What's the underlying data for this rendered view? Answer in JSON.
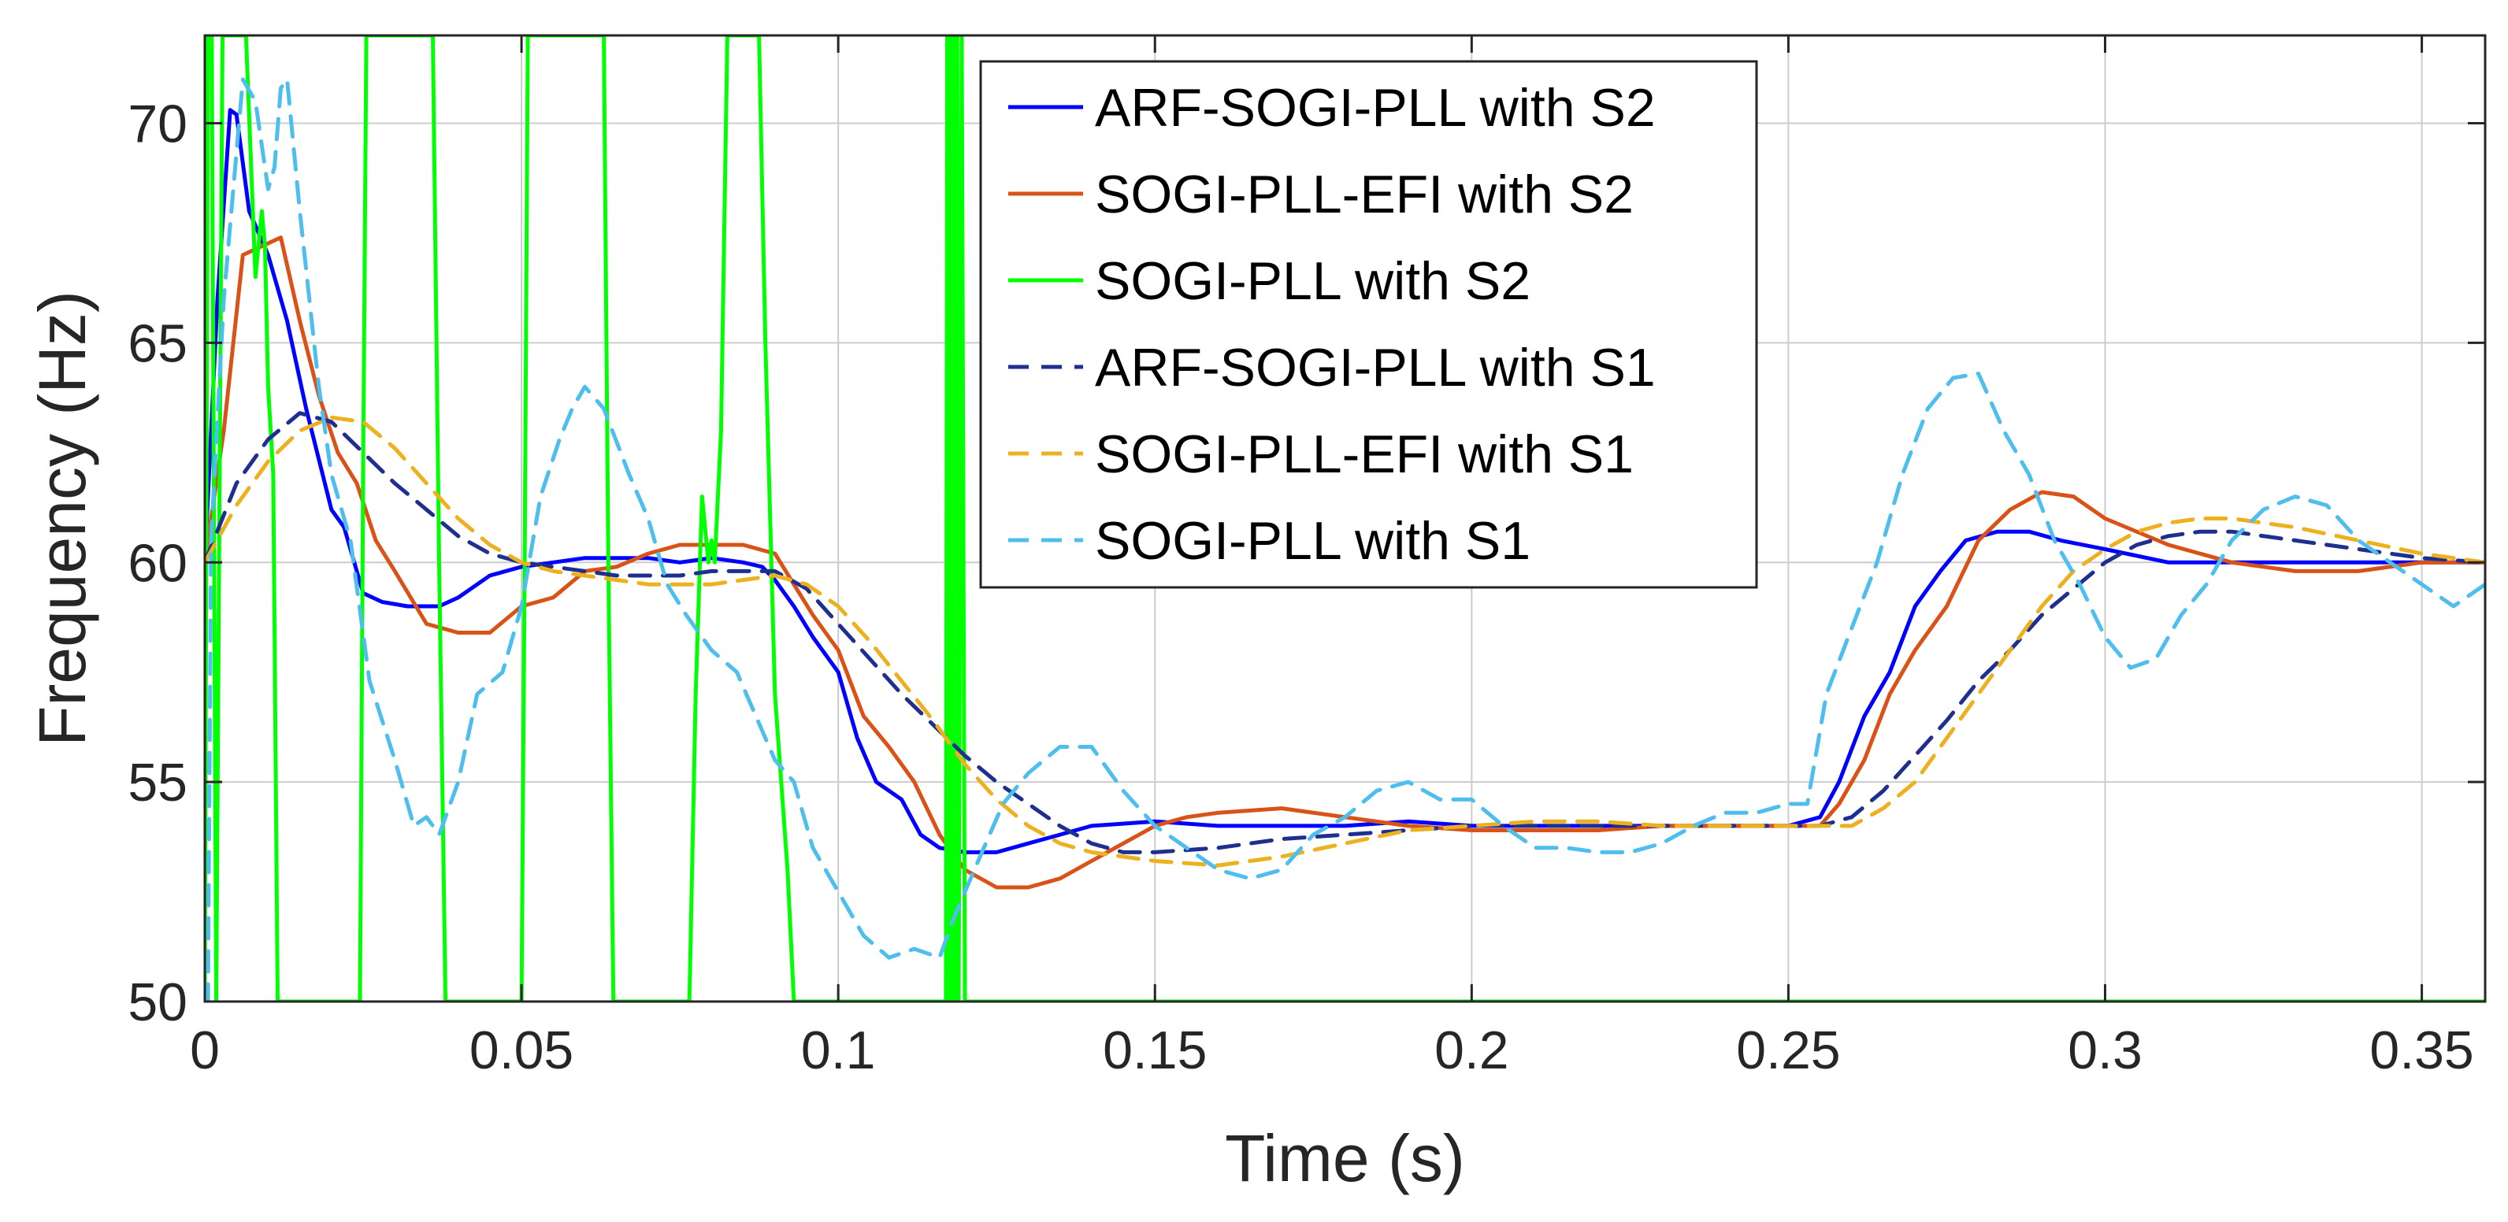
{
  "chart_data": {
    "type": "line",
    "title": "",
    "xlabel": "Time (s)",
    "ylabel": "Frequency (Hz)",
    "xlim": [
      0,
      0.36
    ],
    "ylim": [
      50,
      72
    ],
    "grid": true,
    "legend_position": "top-center",
    "xticks": [
      0,
      0.05,
      0.1,
      0.15,
      0.2,
      0.25,
      0.3,
      0.35
    ],
    "xtick_labels": [
      "0",
      "0.05",
      "0.1",
      "0.15",
      "0.2",
      "0.25",
      "0.3",
      "0.35"
    ],
    "yticks": [
      50,
      55,
      60,
      65,
      70
    ],
    "ytick_labels": [
      "50",
      "55",
      "60",
      "65",
      "70"
    ],
    "series": [
      {
        "name": "ARF-SOGI-PLL with S2",
        "color": "#0000ff",
        "style": "solid",
        "x": [
          0,
          0.002,
          0.004,
          0.005,
          0.007,
          0.01,
          0.013,
          0.016,
          0.02,
          0.022,
          0.025,
          0.028,
          0.032,
          0.037,
          0.04,
          0.045,
          0.05,
          0.055,
          0.06,
          0.065,
          0.07,
          0.075,
          0.08,
          0.085,
          0.088,
          0.09,
          0.093,
          0.096,
          0.1,
          0.103,
          0.106,
          0.11,
          0.113,
          0.116,
          0.12,
          0.125,
          0.13,
          0.135,
          0.14,
          0.15,
          0.16,
          0.17,
          0.18,
          0.19,
          0.2,
          0.21,
          0.22,
          0.23,
          0.24,
          0.25,
          0.255,
          0.258,
          0.262,
          0.266,
          0.27,
          0.274,
          0.278,
          0.283,
          0.288,
          0.293,
          0.3,
          0.31,
          0.32,
          0.33,
          0.34,
          0.35,
          0.36
        ],
        "y": [
          60,
          66,
          70.3,
          70.2,
          68,
          67,
          65.5,
          63.5,
          61.2,
          60.8,
          59.3,
          59.1,
          59.0,
          59.0,
          59.2,
          59.7,
          59.9,
          60.0,
          60.1,
          60.1,
          60.1,
          60.0,
          60.1,
          60.0,
          59.9,
          59.6,
          59.0,
          58.3,
          57.5,
          56.0,
          55.0,
          54.6,
          53.8,
          53.5,
          53.4,
          53.4,
          53.6,
          53.8,
          54.0,
          54.1,
          54.0,
          54.0,
          54.0,
          54.1,
          54.0,
          54.0,
          54.0,
          54.0,
          54.0,
          54.0,
          54.2,
          55.0,
          56.5,
          57.5,
          59.0,
          59.8,
          60.5,
          60.7,
          60.7,
          60.5,
          60.3,
          60.0,
          60.0,
          60.0,
          60.0,
          60.0,
          60.0
        ]
      },
      {
        "name": "SOGI-PLL-EFI with S2",
        "color": "#d95319",
        "style": "solid",
        "x": [
          0,
          0.003,
          0.006,
          0.009,
          0.012,
          0.015,
          0.018,
          0.021,
          0.024,
          0.027,
          0.03,
          0.035,
          0.04,
          0.045,
          0.05,
          0.055,
          0.06,
          0.065,
          0.07,
          0.075,
          0.08,
          0.085,
          0.09,
          0.093,
          0.096,
          0.1,
          0.104,
          0.108,
          0.112,
          0.116,
          0.12,
          0.125,
          0.13,
          0.135,
          0.14,
          0.145,
          0.15,
          0.155,
          0.16,
          0.17,
          0.18,
          0.19,
          0.2,
          0.21,
          0.22,
          0.23,
          0.24,
          0.25,
          0.255,
          0.258,
          0.262,
          0.266,
          0.27,
          0.275,
          0.28,
          0.285,
          0.29,
          0.295,
          0.3,
          0.31,
          0.32,
          0.33,
          0.34,
          0.35,
          0.36
        ],
        "y": [
          60,
          63,
          67.0,
          67.2,
          67.4,
          65.5,
          63.8,
          62.5,
          61.8,
          60.5,
          59.8,
          58.6,
          58.4,
          58.4,
          59.0,
          59.2,
          59.8,
          59.9,
          60.2,
          60.4,
          60.4,
          60.4,
          60.2,
          59.5,
          58.8,
          58.0,
          56.5,
          55.8,
          55.0,
          53.8,
          53.0,
          52.6,
          52.6,
          52.8,
          53.2,
          53.6,
          54.0,
          54.2,
          54.3,
          54.4,
          54.2,
          54.0,
          53.9,
          53.9,
          53.9,
          54.0,
          54.0,
          54.0,
          54.0,
          54.5,
          55.5,
          57.0,
          58.0,
          59.0,
          60.5,
          61.2,
          61.6,
          61.5,
          61.0,
          60.4,
          60.0,
          59.8,
          59.8,
          60.0,
          60.0
        ]
      },
      {
        "name": "SOGI-PLL with S2",
        "color": "#00ff00",
        "style": "solid",
        "x": [
          0,
          0.0005,
          0.0011,
          0.0018,
          0.0028,
          0.004,
          0.006,
          0.0065,
          0.008,
          0.009,
          0.0095,
          0.01,
          0.0108,
          0.0115,
          0.012,
          0.013,
          0.0245,
          0.025,
          0.0255,
          0.026,
          0.036,
          0.037,
          0.038,
          0.05,
          0.0505,
          0.051,
          0.063,
          0.0637,
          0.0645,
          0.0765,
          0.0775,
          0.0785,
          0.0795,
          0.08,
          0.0805,
          0.0815,
          0.0825,
          0.085,
          0.0875,
          0.0885,
          0.09,
          0.092,
          0.093,
          0.0935,
          0.117,
          0.1172,
          0.1174,
          0.1176,
          0.1178,
          0.118,
          0.1182,
          0.1184,
          0.1186,
          0.1188,
          0.119,
          0.1195,
          0.12,
          0.36
        ],
        "y": [
          50,
          72,
          72,
          50,
          72,
          72,
          72,
          72,
          66.5,
          68.0,
          67.2,
          64,
          62,
          50,
          50,
          50,
          50,
          62,
          72,
          72,
          72,
          60,
          50,
          50,
          60,
          72,
          72,
          60,
          50,
          50,
          57,
          61.5,
          60.0,
          60.5,
          60.0,
          63,
          72,
          72,
          72,
          65,
          57,
          53,
          50,
          50,
          50,
          72,
          50,
          72,
          50,
          72,
          50,
          72,
          50,
          72,
          50,
          72,
          50,
          50
        ]
      },
      {
        "name": "ARF-SOGI-PLL with S1",
        "color": "#1f2f8f",
        "style": "dashed",
        "x": [
          0,
          0.005,
          0.01,
          0.015,
          0.02,
          0.025,
          0.03,
          0.035,
          0.04,
          0.045,
          0.05,
          0.055,
          0.06,
          0.065,
          0.07,
          0.075,
          0.08,
          0.085,
          0.09,
          0.095,
          0.1,
          0.105,
          0.11,
          0.115,
          0.12,
          0.125,
          0.13,
          0.135,
          0.14,
          0.145,
          0.15,
          0.16,
          0.17,
          0.18,
          0.19,
          0.2,
          0.21,
          0.22,
          0.23,
          0.24,
          0.25,
          0.255,
          0.26,
          0.265,
          0.27,
          0.275,
          0.28,
          0.285,
          0.29,
          0.295,
          0.3,
          0.305,
          0.31,
          0.315,
          0.32,
          0.33,
          0.34,
          0.35,
          0.36
        ],
        "y": [
          60,
          61.8,
          62.8,
          63.4,
          63.2,
          62.5,
          61.8,
          61.2,
          60.6,
          60.2,
          60.0,
          59.9,
          59.8,
          59.7,
          59.7,
          59.7,
          59.8,
          59.8,
          59.8,
          59.4,
          58.6,
          57.8,
          57.0,
          56.3,
          55.6,
          55.0,
          54.5,
          54.0,
          53.6,
          53.4,
          53.4,
          53.5,
          53.7,
          53.8,
          53.9,
          54.0,
          54.0,
          54.0,
          54.0,
          54.0,
          54.0,
          54.0,
          54.2,
          54.8,
          55.6,
          56.4,
          57.3,
          58.0,
          58.8,
          59.4,
          60.0,
          60.4,
          60.6,
          60.7,
          60.7,
          60.5,
          60.3,
          60.1,
          60.0
        ]
      },
      {
        "name": "SOGI-PLL-EFI with S1",
        "color": "#edb120",
        "style": "dashed",
        "x": [
          0,
          0.005,
          0.01,
          0.015,
          0.02,
          0.025,
          0.03,
          0.035,
          0.04,
          0.045,
          0.05,
          0.055,
          0.06,
          0.065,
          0.07,
          0.075,
          0.08,
          0.085,
          0.09,
          0.095,
          0.1,
          0.105,
          0.11,
          0.115,
          0.12,
          0.125,
          0.13,
          0.135,
          0.14,
          0.145,
          0.15,
          0.16,
          0.17,
          0.18,
          0.19,
          0.2,
          0.21,
          0.22,
          0.23,
          0.24,
          0.25,
          0.255,
          0.26,
          0.265,
          0.27,
          0.275,
          0.28,
          0.285,
          0.29,
          0.295,
          0.3,
          0.305,
          0.31,
          0.315,
          0.32,
          0.33,
          0.34,
          0.35,
          0.36
        ],
        "y": [
          60,
          61.3,
          62.3,
          63.0,
          63.3,
          63.2,
          62.6,
          61.8,
          61.0,
          60.4,
          60.0,
          59.8,
          59.7,
          59.6,
          59.5,
          59.5,
          59.5,
          59.6,
          59.7,
          59.5,
          59.0,
          58.2,
          57.3,
          56.4,
          55.4,
          54.6,
          54.0,
          53.6,
          53.4,
          53.3,
          53.2,
          53.1,
          53.3,
          53.6,
          53.9,
          54.0,
          54.1,
          54.1,
          54.0,
          54.0,
          54.0,
          54.0,
          54.0,
          54.4,
          55.0,
          56.0,
          57.0,
          58.0,
          59.0,
          59.8,
          60.3,
          60.7,
          60.9,
          61.0,
          61.0,
          60.8,
          60.5,
          60.2,
          60.0
        ]
      },
      {
        "name": "SOGI-PLL with S1",
        "color": "#4dbeee",
        "style": "dashed",
        "x": [
          0,
          0.0005,
          0.001,
          0.003,
          0.006,
          0.008,
          0.01,
          0.011,
          0.012,
          0.013,
          0.015,
          0.018,
          0.02,
          0.023,
          0.026,
          0.03,
          0.033,
          0.035,
          0.037,
          0.04,
          0.043,
          0.047,
          0.05,
          0.053,
          0.056,
          0.058,
          0.06,
          0.063,
          0.067,
          0.07,
          0.073,
          0.076,
          0.08,
          0.084,
          0.087,
          0.09,
          0.093,
          0.096,
          0.1,
          0.104,
          0.108,
          0.112,
          0.116,
          0.118,
          0.12,
          0.123,
          0.126,
          0.13,
          0.135,
          0.14,
          0.145,
          0.15,
          0.155,
          0.16,
          0.165,
          0.17,
          0.175,
          0.18,
          0.185,
          0.19,
          0.195,
          0.2,
          0.205,
          0.21,
          0.215,
          0.22,
          0.225,
          0.23,
          0.235,
          0.24,
          0.245,
          0.25,
          0.253,
          0.256,
          0.26,
          0.264,
          0.268,
          0.272,
          0.276,
          0.28,
          0.284,
          0.288,
          0.292,
          0.296,
          0.3,
          0.304,
          0.308,
          0.312,
          0.316,
          0.32,
          0.325,
          0.33,
          0.335,
          0.34,
          0.345,
          0.35,
          0.355,
          0.36
        ],
        "y": [
          50,
          50,
          60.5,
          66,
          71.0,
          70.5,
          68.5,
          69.0,
          70.8,
          71.0,
          68.0,
          64.0,
          62.0,
          60.5,
          57.3,
          55.5,
          54.0,
          54.2,
          53.8,
          55.0,
          57.0,
          57.5,
          59.0,
          61.5,
          62.8,
          63.5,
          64.0,
          63.5,
          62.0,
          61.0,
          59.5,
          58.8,
          58.0,
          57.5,
          56.5,
          55.5,
          55.0,
          53.5,
          52.5,
          51.5,
          51.0,
          51.2,
          51.0,
          51.8,
          52.5,
          53.5,
          54.5,
          55.2,
          55.8,
          55.8,
          54.8,
          54.0,
          53.5,
          53.0,
          52.8,
          53.0,
          53.8,
          54.2,
          54.8,
          55.0,
          54.6,
          54.6,
          54.0,
          53.5,
          53.5,
          53.4,
          53.4,
          53.6,
          54.0,
          54.3,
          54.3,
          54.5,
          54.5,
          57.0,
          58.5,
          60.0,
          62.0,
          63.5,
          64.2,
          64.3,
          63.0,
          62.0,
          60.5,
          59.5,
          58.3,
          57.6,
          57.8,
          58.8,
          59.5,
          60.5,
          61.2,
          61.5,
          61.3,
          60.5,
          60.0,
          59.5,
          59.0,
          59.5
        ]
      }
    ]
  }
}
